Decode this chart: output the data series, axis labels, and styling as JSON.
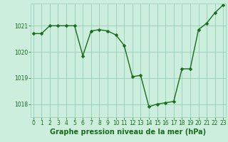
{
  "x": [
    0,
    1,
    2,
    3,
    4,
    5,
    6,
    7,
    8,
    9,
    10,
    11,
    12,
    13,
    14,
    15,
    16,
    17,
    18,
    19,
    20,
    21,
    22,
    23
  ],
  "y": [
    1020.7,
    1020.7,
    1021.0,
    1021.0,
    1021.0,
    1021.0,
    1019.85,
    1020.8,
    1020.85,
    1020.8,
    1020.65,
    1020.25,
    1019.05,
    1019.1,
    1017.9,
    1018.0,
    1018.05,
    1018.1,
    1019.35,
    1019.35,
    1020.85,
    1021.1,
    1021.5,
    1021.8
  ],
  "line_color": "#1a6b1a",
  "marker_color": "#1a6b1a",
  "bg_color": "#cceedd",
  "grid_color": "#99ccbb",
  "xlabel": "Graphe pression niveau de la mer (hPa)",
  "xlabel_color": "#1a6b1a",
  "tick_color": "#1a6b1a",
  "ylim": [
    1017.5,
    1021.85
  ],
  "yticks": [
    1018,
    1019,
    1020,
    1021
  ],
  "xticks": [
    0,
    1,
    2,
    3,
    4,
    5,
    6,
    7,
    8,
    9,
    10,
    11,
    12,
    13,
    14,
    15,
    16,
    17,
    18,
    19,
    20,
    21,
    22,
    23
  ],
  "title_fontsize": 7,
  "tick_fontsize": 5.5,
  "line_width": 1.0,
  "marker_size": 2.5
}
